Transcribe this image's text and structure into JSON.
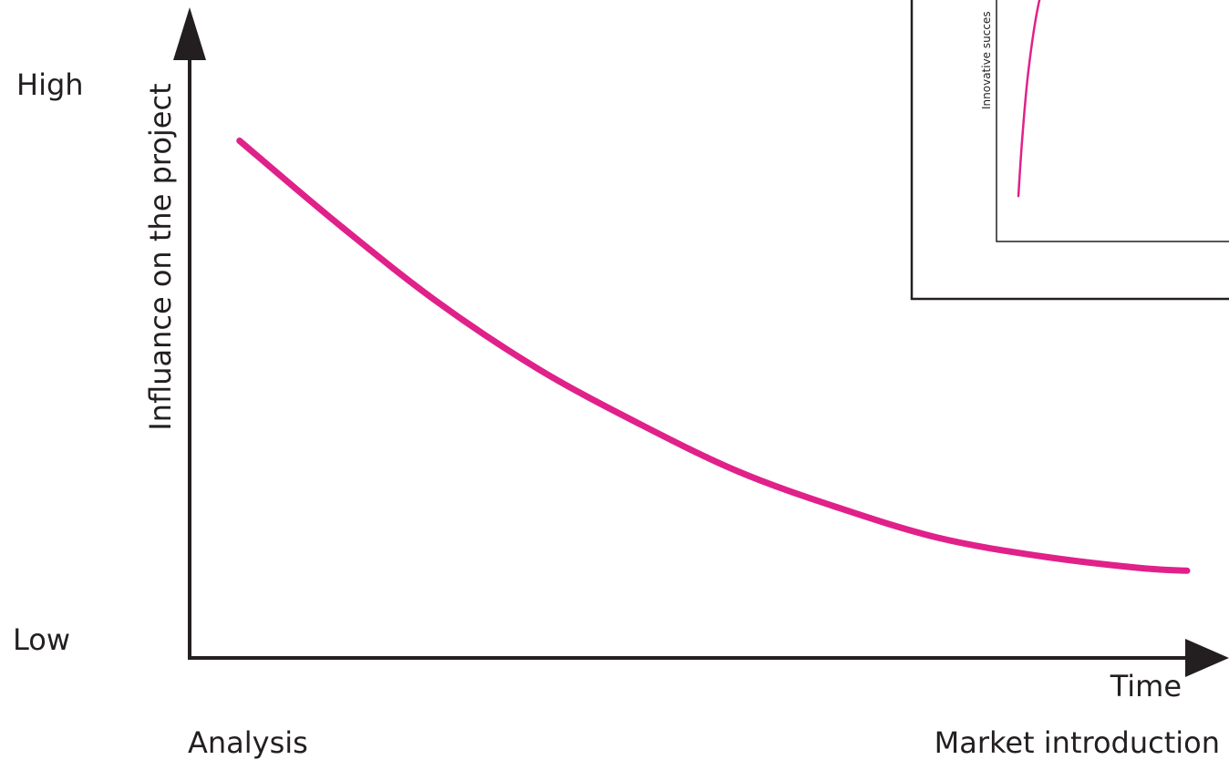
{
  "colors": {
    "curve": "#e0218a",
    "axis": "#231f20",
    "text": "#231f20"
  },
  "chart_data": [
    {
      "type": "line",
      "ylabel": "Influance on the project",
      "xlabel": "Time",
      "y_high_label": "High",
      "y_low_label": "Low",
      "x_start_label": "Analysis",
      "x_end_label": "Market introduction",
      "ylim": [
        0,
        1
      ],
      "xlim": [
        0,
        1
      ],
      "series": [
        {
          "color": "#e0218a",
          "x": [
            0.05,
            0.15,
            0.25,
            0.35,
            0.45,
            0.55,
            0.65,
            0.75,
            0.85,
            0.95,
            1.0
          ],
          "y": [
            0.86,
            0.72,
            0.59,
            0.48,
            0.39,
            0.31,
            0.25,
            0.2,
            0.17,
            0.15,
            0.145
          ]
        }
      ],
      "grid": false
    },
    {
      "type": "line",
      "ylabel": "Innovative succes",
      "partially_visible": true,
      "series": [
        {
          "color": "#e0218a",
          "x": [
            0.0,
            0.02,
            0.05,
            0.1,
            0.16
          ],
          "y": [
            0.12,
            0.35,
            0.6,
            0.85,
            1.0
          ]
        }
      ]
    }
  ]
}
